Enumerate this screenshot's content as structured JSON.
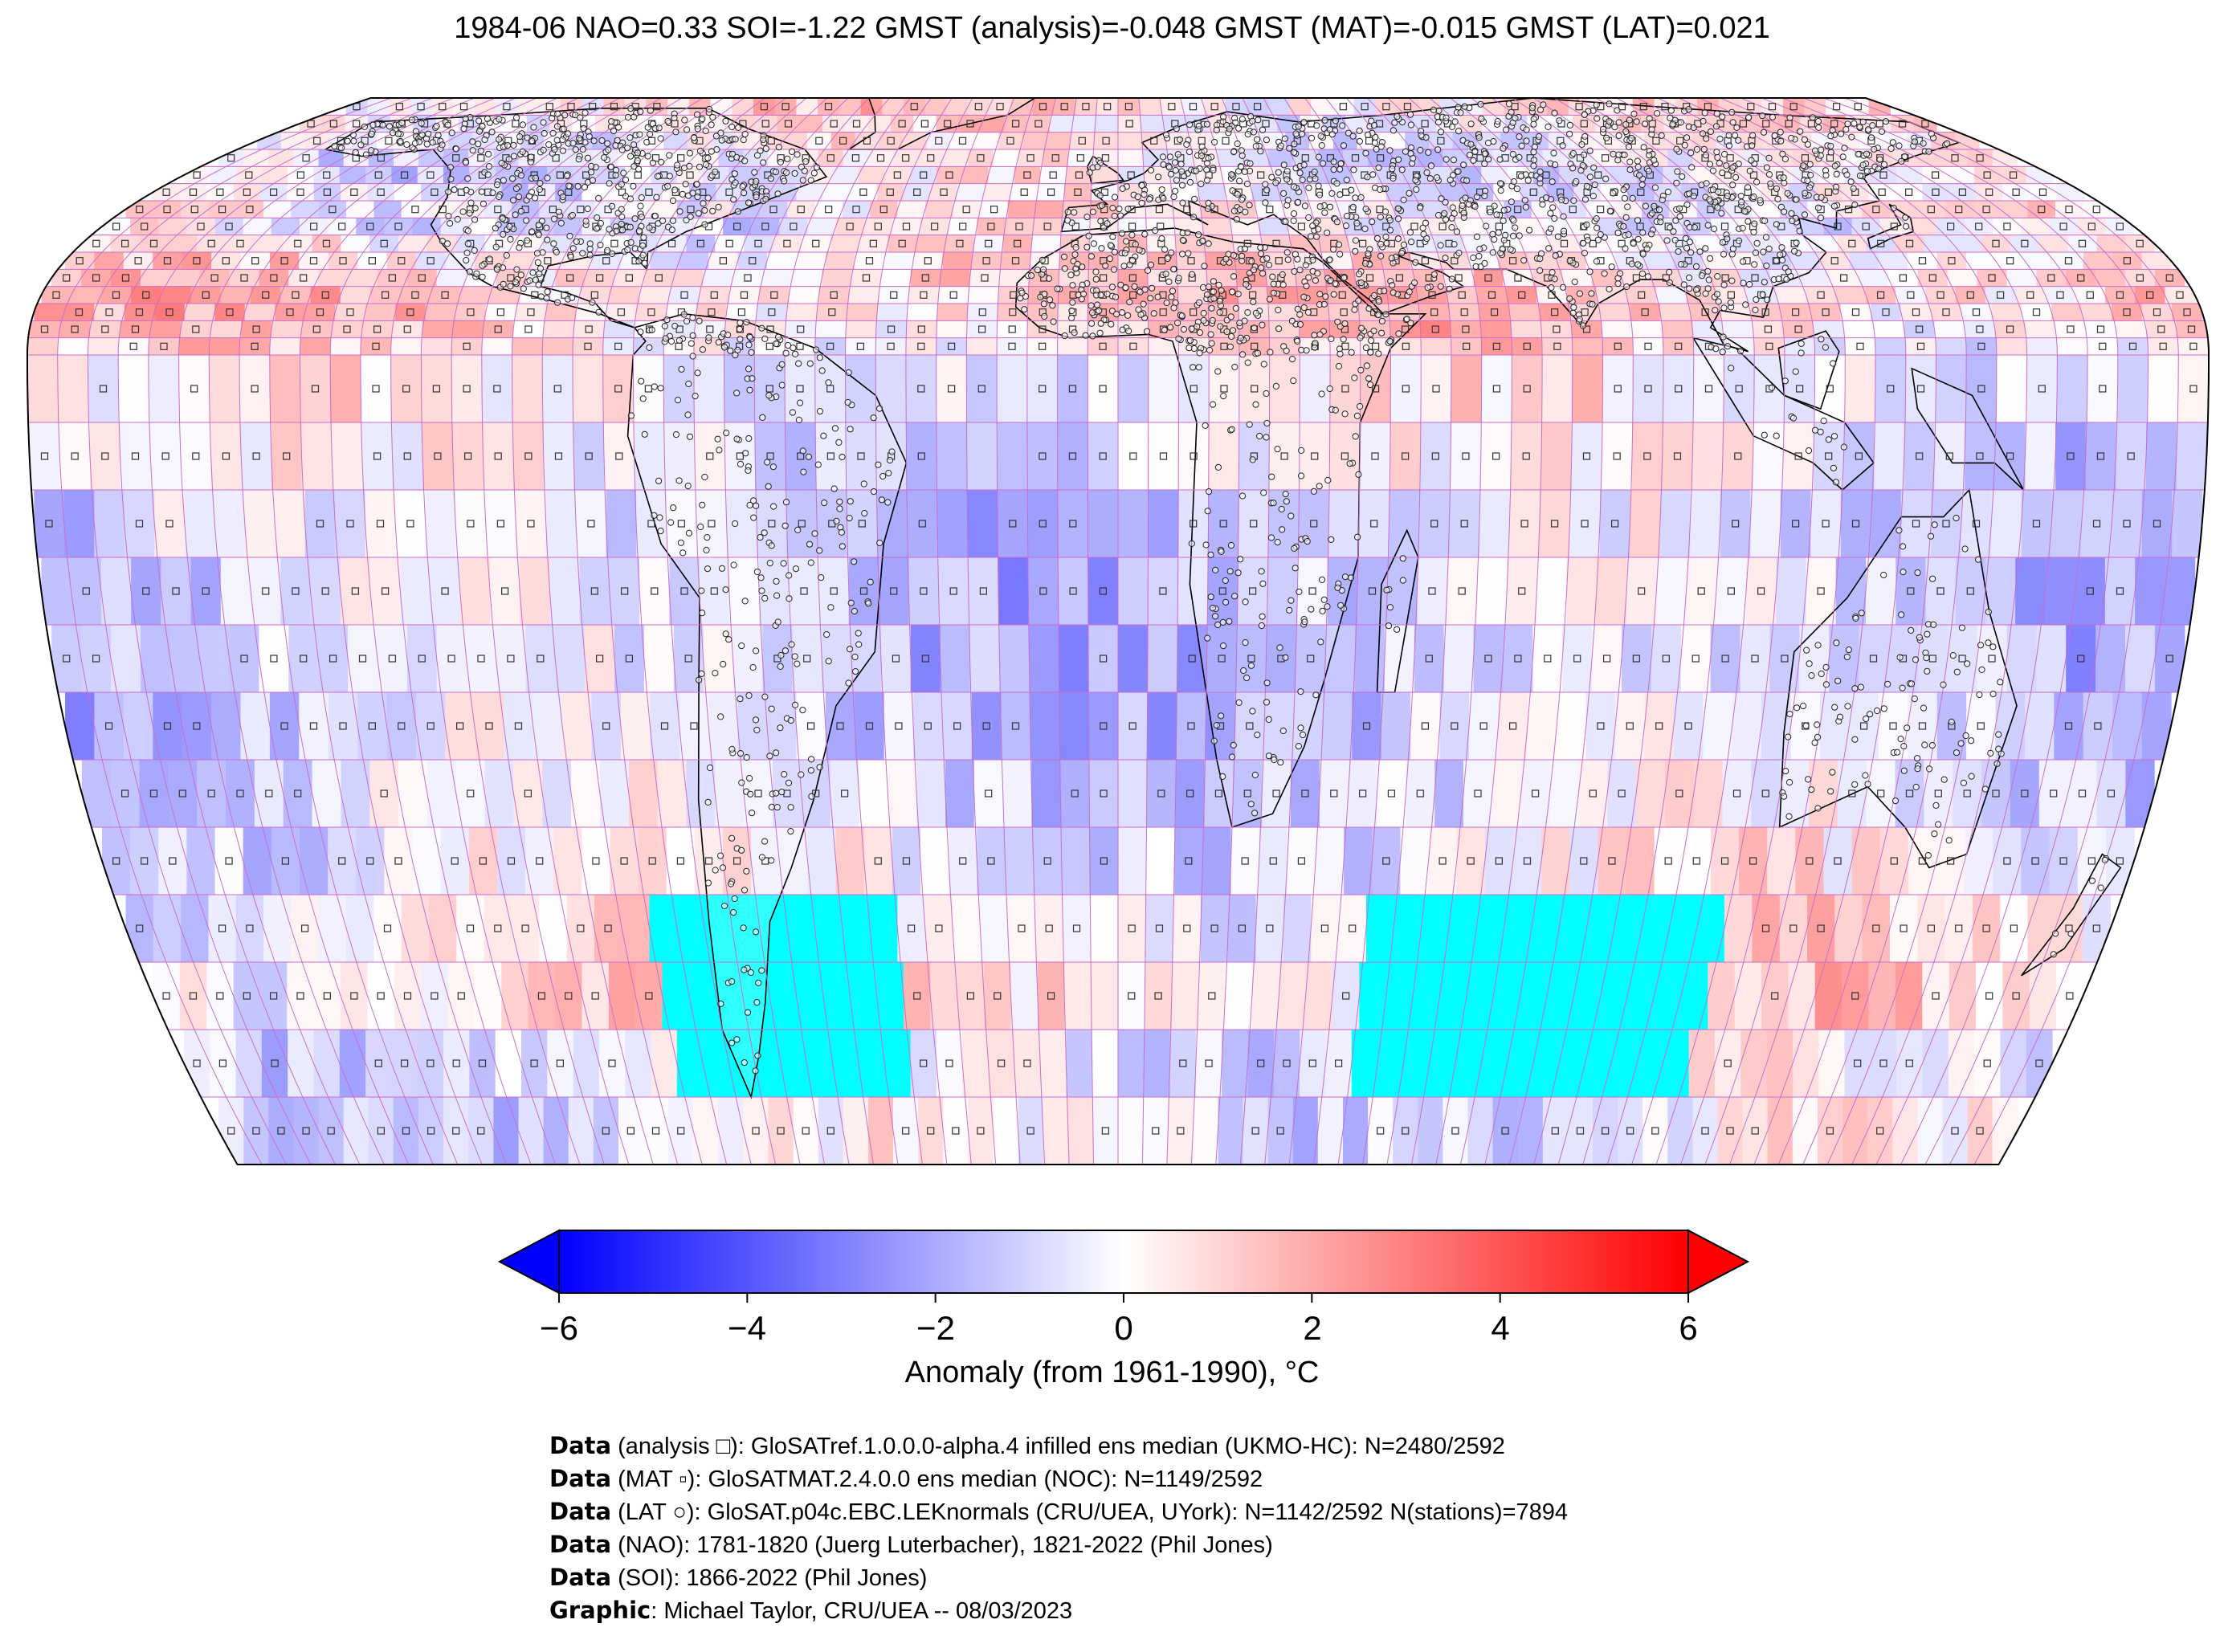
{
  "title": "1984-06 NAO=0.33 SOI=-1.22 GMST (analysis)=-0.048 GMST (MAT)=-0.015 GMST (LAT)=0.021",
  "map": {
    "projection": "Robinson",
    "gridline_color": "#c86ec8",
    "no_data_color": "#00ffff",
    "coast_color": "#000000",
    "markers": {
      "analysis": "square-icon",
      "mat": "small-square-icon",
      "lat": "circle-icon"
    }
  },
  "colorbar": {
    "label": "Anomaly (from 1961-1990), °C",
    "min": -6,
    "max": 6,
    "extend": "both",
    "cmap": [
      "#0000ff",
      "#ffffff",
      "#ff0000"
    ],
    "ticks": [
      "−6",
      "−4",
      "−2",
      "0",
      "2",
      "4",
      "6"
    ],
    "tick_values": [
      -6,
      -4,
      -2,
      0,
      2,
      4,
      6
    ]
  },
  "credits": [
    {
      "bold": "Data",
      "text": " (analysis □): GloSATref.1.0.0.0-alpha.4 infilled ens median (UKMO-HC): N=2480/2592"
    },
    {
      "bold": "Data",
      "text": " (MAT ▫): GloSATMAT.2.4.0.0 ens median (NOC): N=1149/2592"
    },
    {
      "bold": "Data",
      "text": " (LAT ○): GloSAT.p04c.EBC.LEKnormals (CRU/UEA, UYork): N=1142/2592 N(stations)=7894"
    },
    {
      "bold": "Data",
      "text": " (NAO): 1781-1820 (Juerg Luterbacher), 1821-2022 (Phil Jones)"
    },
    {
      "bold": "Data",
      "text": " (SOI): 1866-2022 (Phil Jones)"
    },
    {
      "bold": "Graphic",
      "text": ": Michael Taylor, CRU/UEA -- 08/03/2023"
    }
  ]
}
